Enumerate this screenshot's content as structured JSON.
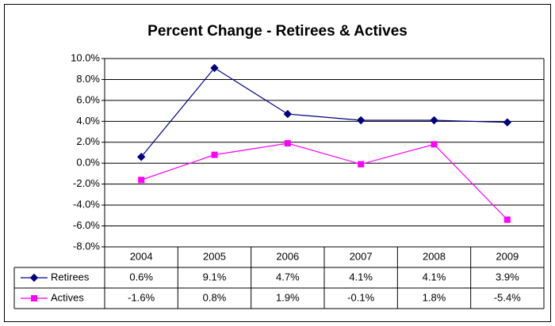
{
  "chart_data": {
    "type": "line",
    "title": "Percent Change - Retirees & Actives",
    "categories": [
      "2004",
      "2005",
      "2006",
      "2007",
      "2008",
      "2009"
    ],
    "series": [
      {
        "name": "Retirees",
        "color": "#000080",
        "marker": "diamond",
        "values": [
          0.6,
          9.1,
          4.7,
          4.1,
          4.1,
          3.9
        ],
        "value_labels": [
          "0.6%",
          "9.1%",
          "4.7%",
          "4.1%",
          "4.1%",
          "3.9%"
        ]
      },
      {
        "name": "Actives",
        "color": "#ff00ff",
        "marker": "square",
        "values": [
          -1.6,
          0.8,
          1.9,
          -0.1,
          1.8,
          -5.4
        ],
        "value_labels": [
          "-1.6%",
          "0.8%",
          "1.9%",
          "-0.1%",
          "1.8%",
          "-5.4%"
        ]
      }
    ],
    "ylim": [
      -8,
      10
    ],
    "yticks": [
      {
        "value": -8,
        "label": "-8.0%"
      },
      {
        "value": -6,
        "label": "-6.0%"
      },
      {
        "value": -4,
        "label": "-4.0%"
      },
      {
        "value": -2,
        "label": "-2.0%"
      },
      {
        "value": 0,
        "label": "0.0%"
      },
      {
        "value": 2,
        "label": "2.0%"
      },
      {
        "value": 4,
        "label": "4.0%"
      },
      {
        "value": 6,
        "label": "6.0%"
      },
      {
        "value": 8,
        "label": "8.0%"
      },
      {
        "value": 10,
        "label": "10.0%"
      }
    ],
    "grid": true
  }
}
